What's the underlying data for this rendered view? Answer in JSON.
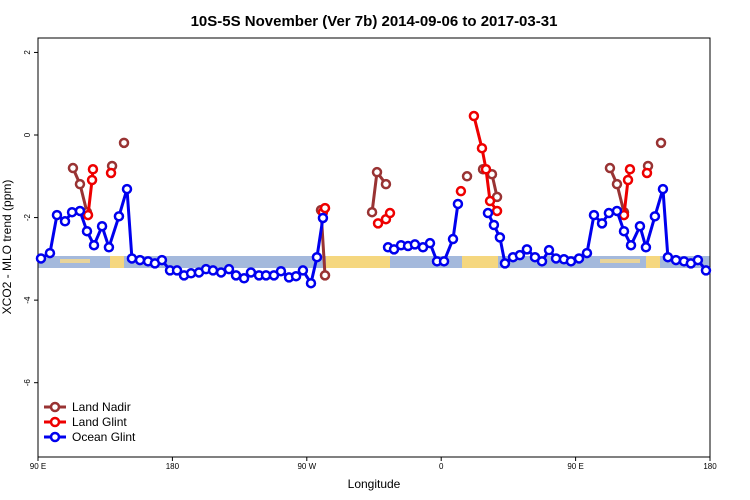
{
  "chart_data": {
    "type": "line",
    "title": "10S-5S November (Ver 7b)   2014-09-06 to 2017-03-31",
    "x_label": "Longitude",
    "y_label": "XCO2 - MLO trend (ppm)",
    "xlim": [
      90,
      540
    ],
    "ylim": [
      -7.8,
      2.35
    ],
    "xticks": [
      {
        "value": 90,
        "label": "90 E"
      },
      {
        "value": 180,
        "label": "180"
      },
      {
        "value": 270,
        "label": "90 W"
      },
      {
        "value": 360,
        "label": "0"
      },
      {
        "value": 450,
        "label": "90 E"
      },
      {
        "value": 540,
        "label": "180"
      }
    ],
    "yticks": [
      2,
      0,
      -2,
      -4,
      -6
    ],
    "legend": "bottom-left",
    "series": [
      {
        "name": "Land Nadir",
        "color": "#993333",
        "x": [
          113.4,
          118.1,
          122.8,
          null,
          139.6,
          null,
          147.6,
          null,
          279.5,
          282.2,
          null,
          313.7,
          317.0,
          323.0,
          null,
          377.3,
          null,
          388.0,
          394.0,
          397.4,
          null,
          473.0,
          477.7,
          482.4,
          null,
          498.5,
          null,
          507.2
        ],
        "values": [
          -0.8,
          -1.19,
          -1.87,
          null,
          -0.75,
          null,
          -0.19,
          null,
          -1.82,
          -3.4,
          null,
          -1.87,
          -0.9,
          -1.19,
          null,
          -1.0,
          null,
          -0.83,
          -0.95,
          -1.5,
          null,
          -0.8,
          -1.19,
          -1.87,
          null,
          -0.75,
          null,
          -0.19
        ]
      },
      {
        "name": "Land Glint",
        "color": "#ee0000",
        "x": [
          123.5,
          126.2,
          126.8,
          null,
          138.9,
          null,
          280.8,
          282.2,
          null,
          317.7,
          323.0,
          325.7,
          null,
          373.2,
          null,
          381.9,
          387.3,
          390.0,
          392.7,
          397.4,
          null,
          482.4,
          485.1,
          486.4,
          null,
          497.8
        ],
        "values": [
          -1.94,
          -1.09,
          -0.83,
          null,
          -0.92,
          null,
          -1.87,
          -1.77,
          null,
          -2.14,
          -2.04,
          -1.89,
          null,
          -1.36,
          null,
          0.46,
          -0.32,
          -0.83,
          -1.6,
          -1.84,
          null,
          -1.94,
          -1.09,
          -0.83,
          null,
          -0.92
        ]
      },
      {
        "name": "Ocean Glint",
        "color": "#0000ee",
        "x": [
          92.0,
          98.0,
          102.7,
          108.1,
          112.8,
          118.1,
          122.8,
          127.5,
          132.9,
          137.5,
          144.2,
          149.6,
          152.9,
          158.3,
          163.7,
          168.3,
          173.0,
          178.4,
          183.1,
          187.8,
          192.5,
          197.8,
          202.5,
          207.2,
          212.6,
          217.9,
          222.6,
          228.0,
          232.6,
          238.0,
          242.7,
          248.0,
          252.7,
          258.1,
          262.8,
          267.4,
          272.8,
          276.8,
          280.8,
          null,
          324.4,
          328.4,
          333.1,
          337.8,
          342.4,
          347.8,
          352.5,
          357.2,
          361.9,
          367.9,
          371.2,
          null,
          391.3,
          395.3,
          399.3,
          402.7,
          408.1,
          412.7,
          417.4,
          422.8,
          427.5,
          432.2,
          436.9,
          442.2,
          446.9,
          452.3,
          457.6,
          462.3,
          467.7,
          472.3,
          477.7,
          482.4,
          487.1,
          493.1,
          497.1,
          503.1,
          508.5,
          511.8,
          517.2,
          522.6,
          527.2,
          531.9,
          537.3
        ],
        "values": [
          -2.99,
          -2.86,
          -1.94,
          -2.09,
          -1.87,
          -1.84,
          -2.33,
          -2.67,
          -2.21,
          -2.72,
          -1.97,
          -1.31,
          -2.99,
          -3.03,
          -3.06,
          -3.11,
          -3.03,
          -3.28,
          -3.28,
          -3.4,
          -3.35,
          -3.33,
          -3.25,
          -3.28,
          -3.33,
          -3.25,
          -3.4,
          -3.47,
          -3.33,
          -3.4,
          -3.4,
          -3.4,
          -3.3,
          -3.45,
          -3.42,
          -3.28,
          -3.59,
          -2.96,
          -2.01,
          null,
          -2.72,
          -2.77,
          -2.67,
          -2.69,
          -2.65,
          -2.72,
          -2.62,
          -3.06,
          -3.06,
          -2.52,
          -1.67,
          null,
          -1.89,
          -2.18,
          -2.48,
          -3.11,
          -2.96,
          -2.91,
          -2.77,
          -2.96,
          -3.06,
          -2.79,
          -2.99,
          -3.01,
          -3.06,
          -2.99,
          -2.86,
          -1.94,
          -2.14,
          -1.89,
          -1.84,
          -2.33,
          -2.67,
          -2.21,
          -2.72,
          -1.97,
          -1.31,
          -2.96,
          -3.03,
          -3.06,
          -3.11,
          -3.03,
          -3.28
        ]
      }
    ]
  }
}
